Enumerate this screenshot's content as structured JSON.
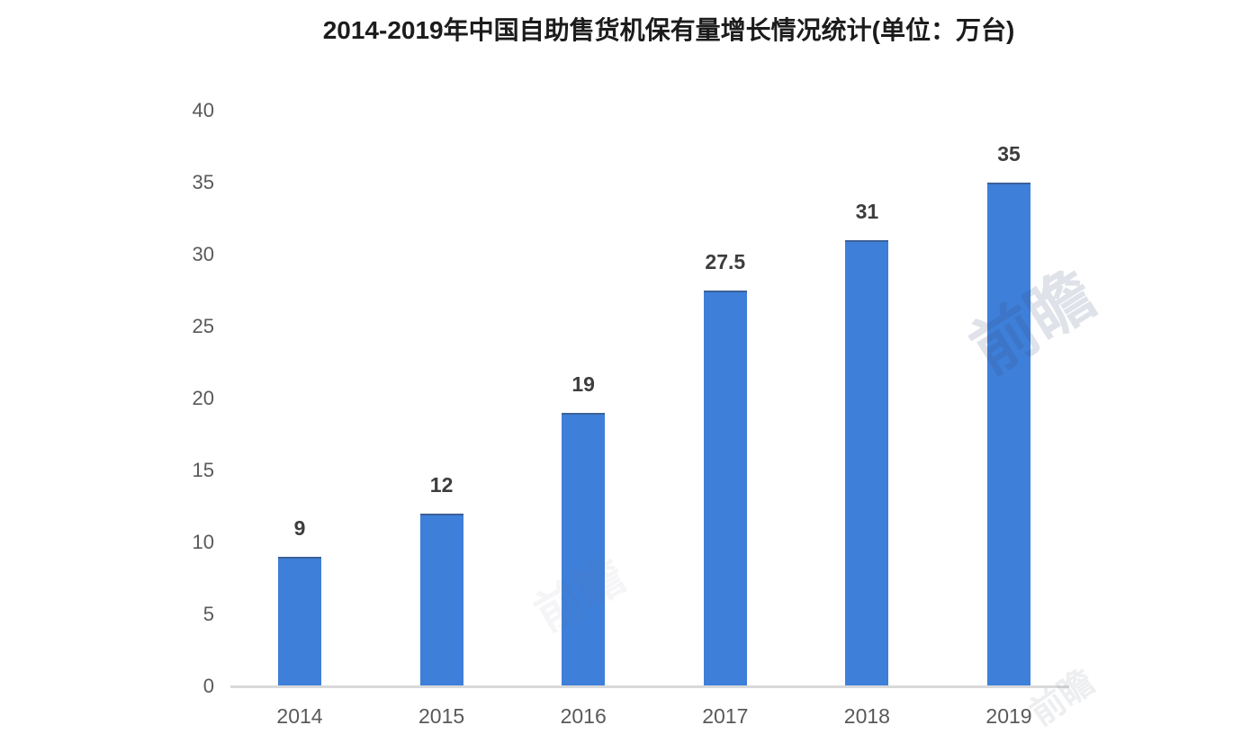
{
  "title": "2014-2019年中国自助售货机保有量增长情况统计(单位：万台)",
  "chart_data": {
    "type": "bar",
    "title": "2014-2019年中国自助售货机保有量增长情况统计(单位：万台)",
    "categories": [
      "2014",
      "2015",
      "2016",
      "2017",
      "2018",
      "2019"
    ],
    "values": [
      9,
      12,
      19,
      27.5,
      31,
      35
    ],
    "data_labels": [
      "9",
      "12",
      "19",
      "27.5",
      "31",
      "35"
    ],
    "series_unit": "万台",
    "xlabel": "",
    "ylabel": "",
    "ylim": [
      0,
      40
    ],
    "yticks": [
      0,
      5,
      10,
      15,
      20,
      25,
      30,
      35,
      40
    ],
    "grid": false,
    "legend_position": "none",
    "bar_color": "#3e7fd9",
    "axis_line_color": "#d9d9d9",
    "tick_label_color": "#595959",
    "value_label_color": "#3d3d3d"
  },
  "watermark": {
    "text": "前瞻"
  }
}
